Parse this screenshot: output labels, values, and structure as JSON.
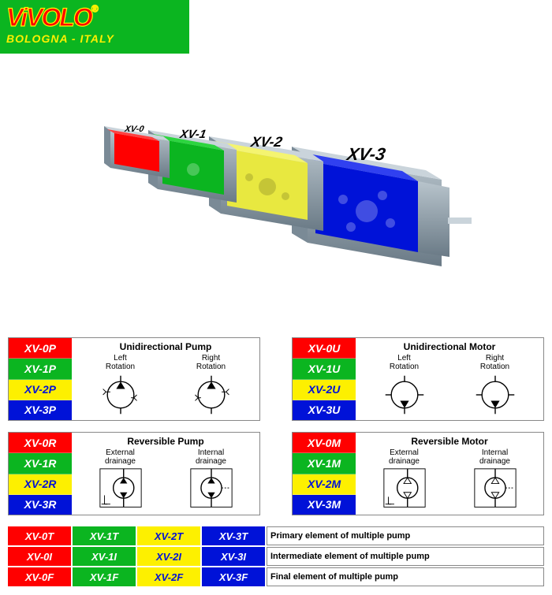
{
  "logo": {
    "top": "ViVOLO",
    "bottom": "BOLOGNA - ITALY",
    "reg": "®"
  },
  "colors": {
    "xv0": "#ff0000",
    "xv1": "#0bb520",
    "xv2": "#fdf000",
    "xv3": "#0012d8",
    "text_on_yellow": "#0012d8"
  },
  "hero": {
    "labels": [
      "XV-0",
      "XV-1",
      "XV-2",
      "XV-3"
    ],
    "block_colors": [
      "#ff0000",
      "#0bb520",
      "#e8e840",
      "#0012d8"
    ],
    "flange_color": "#8a9aa6"
  },
  "blocks": [
    {
      "title": "Unidirectional Pump",
      "codes": [
        "XV-0P",
        "XV-1P",
        "XV-2P",
        "XV-3P"
      ],
      "sub": [
        "Left Rotation",
        "Right Rotation"
      ],
      "symbol": "pump-uni"
    },
    {
      "title": "Unidirectional Motor",
      "codes": [
        "XV-0U",
        "XV-1U",
        "XV-2U",
        "XV-3U"
      ],
      "sub": [
        "Left Rotation",
        "Right Rotation"
      ],
      "symbol": "motor-uni"
    },
    {
      "title": "Reversible Pump",
      "codes": [
        "XV-0R",
        "XV-1R",
        "XV-2R",
        "XV-3R"
      ],
      "sub": [
        "External drainage",
        "Internal drainage"
      ],
      "symbol": "pump-rev"
    },
    {
      "title": "Reversible Motor",
      "codes": [
        "XV-0M",
        "XV-1M",
        "XV-2M",
        "XV-3M"
      ],
      "sub": [
        "External drainage",
        "Internal drainage"
      ],
      "symbol": "motor-rev"
    }
  ],
  "bottom": [
    {
      "codes": [
        "XV-0T",
        "XV-1T",
        "XV-2T",
        "XV-3T"
      ],
      "desc": "Primary element of multiple pump"
    },
    {
      "codes": [
        "XV-0I",
        "XV-1I",
        "XV-2I",
        "XV-3I"
      ],
      "desc": "Intermediate element of multiple pump"
    },
    {
      "codes": [
        "XV-0F",
        "XV-1F",
        "XV-2F",
        "XV-3F"
      ],
      "desc": "Final element of multiple pump"
    }
  ]
}
